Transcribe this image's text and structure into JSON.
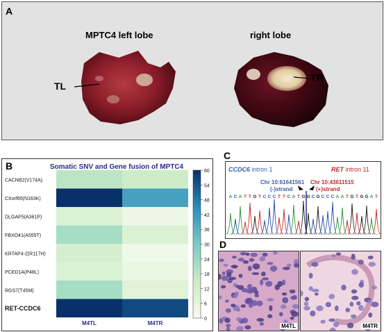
{
  "panels": {
    "a": "A",
    "b": "B",
    "c": "C",
    "d": "D"
  },
  "photo": {
    "left_title": "MPTC4 left lobe",
    "right_title": "right lobe",
    "left_label": "TL",
    "right_label": "TR"
  },
  "chart_data": {
    "type": "heatmap",
    "title": "Somatic SNV and Gene fusion of MPTC4",
    "rows": [
      "CACNB2(V174A)",
      "CXorf65(N163K)",
      "DLGAP5(A361P)",
      "FBXO41(A555T)",
      "KRTAP4-2(R117H)",
      "PCED1A(P48L)",
      "RGS7(T45M)",
      "RET-CCDC6"
    ],
    "columns": [
      "M4TL",
      "M4TR"
    ],
    "values": [
      [
        18,
        14
      ],
      [
        60,
        40
      ],
      [
        10,
        4
      ],
      [
        22,
        10
      ],
      [
        12,
        3
      ],
      [
        10,
        5
      ],
      [
        22,
        8
      ],
      [
        60,
        56
      ]
    ],
    "colorbar_range": [
      0,
      60
    ],
    "colorbar_ticks": [
      "60",
      "54",
      "48",
      "42",
      "36",
      "30",
      "24",
      "18",
      "12",
      "6",
      "0"
    ]
  },
  "sequence": {
    "left_title_gene": "CCDC6",
    "left_title_rest": " intron 1",
    "right_title_gene": "RET",
    "right_title_rest": " intron 11",
    "left_chr": "Chr 10:61641561",
    "left_strand": "(-)strand",
    "right_chr": "Chr 10:43611515",
    "right_strand": "(+)strand",
    "bases": "ACATTGTCCCTTCATGGCGCCCAATGTGGAT"
  },
  "histology": {
    "left_label": "M4TL",
    "right_label": "M4TR"
  },
  "colors": {
    "heat_low": "#f7fcf0",
    "heat_mid": "#7bccc4",
    "heat_high": "#08306b",
    "ccdc6_blue": "#3a5fa8",
    "ret_red": "#c0282d"
  }
}
